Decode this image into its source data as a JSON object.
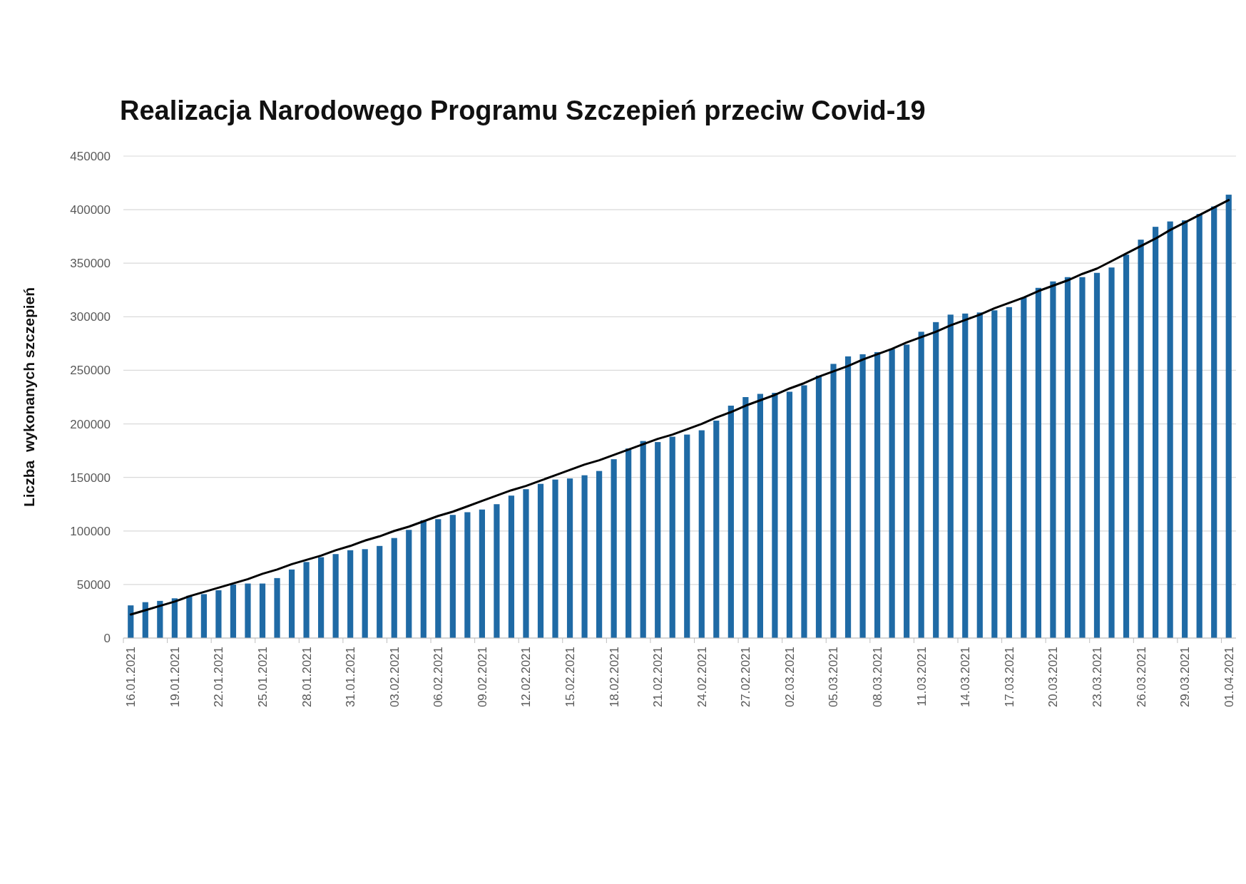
{
  "chart_data": {
    "type": "bar",
    "title": "Realizacja Narodowego Programu Szczepień przeciw Covid-19",
    "ylabel": "Liczba  wykonanych szczepień",
    "categories": [
      "16.01.2021",
      null,
      null,
      "19.01.2021",
      null,
      null,
      "22.01.2021",
      null,
      null,
      "25.01.2021",
      null,
      null,
      "28.01.2021",
      null,
      null,
      "31.01.2021",
      null,
      null,
      "03.02.2021",
      null,
      null,
      "06.02.2021",
      null,
      null,
      "09.02.2021",
      null,
      null,
      "12.02.2021",
      null,
      null,
      "15.02.2021",
      null,
      null,
      "18.02.2021",
      null,
      null,
      "21.02.2021",
      null,
      null,
      "24.02.2021",
      null,
      null,
      "27.02.2021",
      null,
      null,
      "02.03.2021",
      null,
      null,
      "05.03.2021",
      null,
      null,
      "08.03.2021",
      null,
      null,
      "11.03.2021",
      null,
      null,
      "14.03.2021",
      null,
      null,
      "17.03.2021",
      null,
      null,
      "20.03.2021",
      null,
      null,
      "23.03.2021",
      null,
      null,
      "26.03.2021",
      null,
      null,
      "29.03.2021",
      null,
      null,
      "01.04.2021"
    ],
    "series": [
      {
        "color": "#1f6aa5",
        "values": [
          30500,
          33500,
          34700,
          37100,
          39500,
          41000,
          44600,
          50000,
          50900,
          50900,
          56000,
          64000,
          71000,
          75500,
          78400,
          82000,
          83000,
          86000,
          93400,
          101000,
          110000,
          111000,
          115000,
          117500,
          120000,
          125000,
          133000,
          139000,
          144000,
          148000,
          149000,
          152000,
          156000,
          167000,
          177000,
          184000,
          183000,
          188000,
          190000,
          194000,
          203000,
          217000,
          225000,
          228000,
          229000,
          230000,
          236000,
          245000,
          256000,
          263000,
          265000,
          267000,
          270000,
          274000,
          286000,
          295000,
          302000,
          303000,
          304000,
          306000,
          309000,
          318000,
          327000,
          333000,
          337000,
          337000,
          341000,
          346000,
          358000,
          372000,
          384000,
          389000,
          390000,
          396000,
          403000,
          414000
        ]
      },
      {
        "type": "line",
        "color": "#000000",
        "values": [
          22000,
          26000,
          30000,
          34000,
          39000,
          43000,
          47000,
          51000,
          55000,
          60000,
          64000,
          69000,
          73000,
          77000,
          82000,
          86000,
          91000,
          95000,
          100000,
          104000,
          109000,
          114000,
          118000,
          123000,
          128000,
          133000,
          138000,
          142000,
          147000,
          152000,
          157000,
          162000,
          166000,
          171000,
          176000,
          181000,
          186000,
          190000,
          195000,
          200000,
          206000,
          211000,
          217000,
          222000,
          227000,
          233000,
          238000,
          244000,
          249000,
          254000,
          260000,
          265000,
          270000,
          276000,
          281000,
          286000,
          292000,
          297000,
          302000,
          308000,
          313000,
          318000,
          324000,
          329000,
          334000,
          340000,
          345000,
          352000,
          359000,
          366000,
          373000,
          381000,
          388000,
          395000,
          402000,
          409000
        ]
      }
    ],
    "ylim": [
      0,
      450000
    ],
    "yticks": [
      0,
      50000,
      100000,
      150000,
      200000,
      250000,
      300000,
      350000,
      400000,
      450000
    ],
    "grid": "y"
  }
}
